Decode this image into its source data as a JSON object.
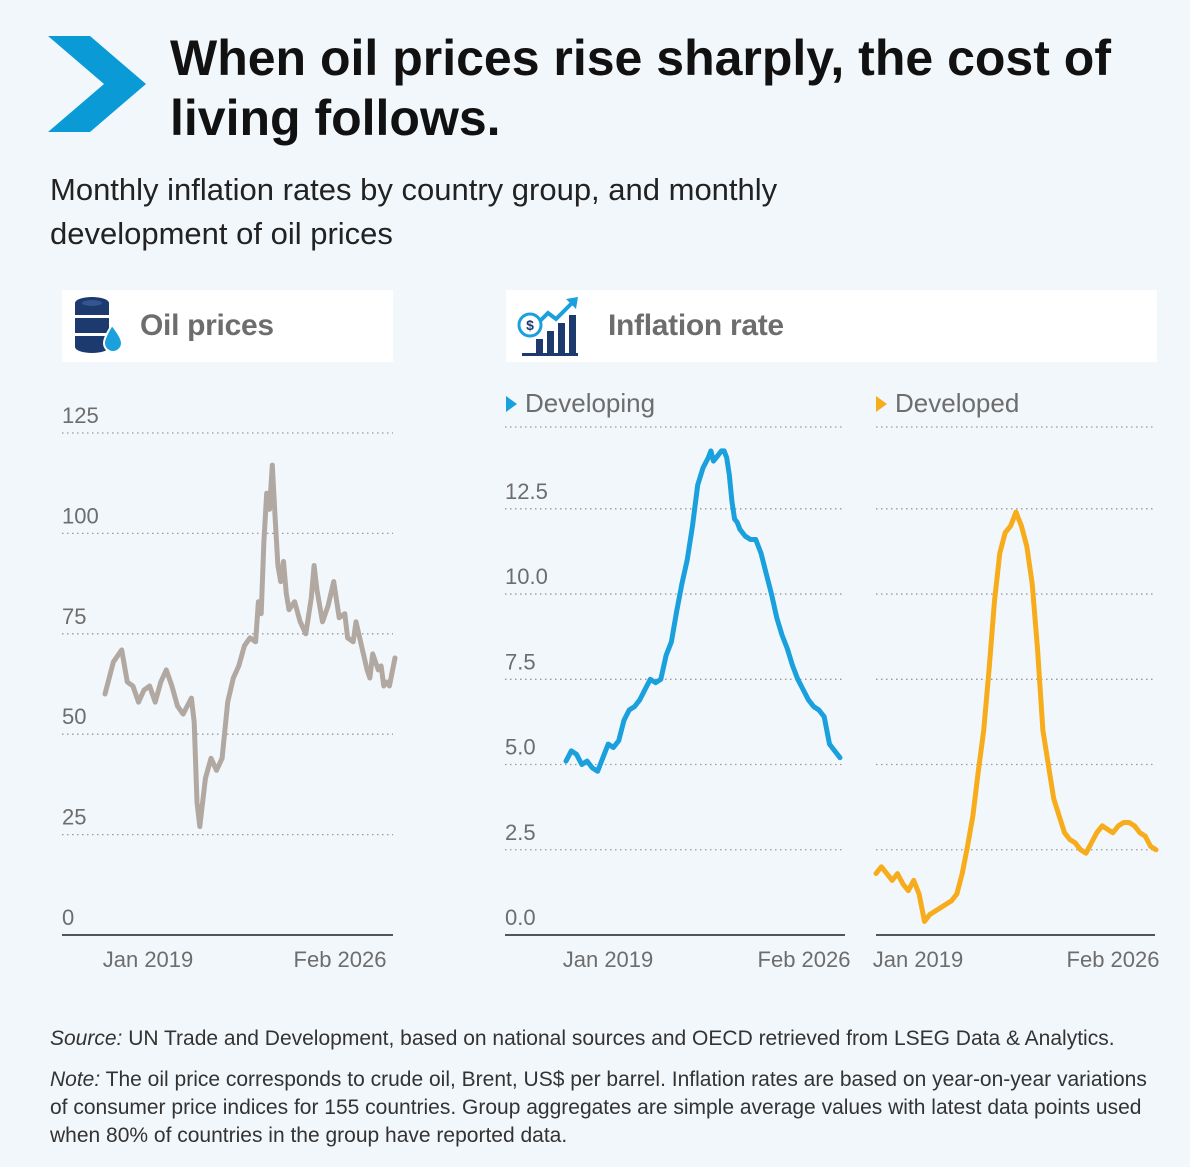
{
  "header": {
    "title": "When oil prices rise sharply, the cost of living follows.",
    "subtitle": "Monthly inflation rates by country group, and monthly development of oil prices"
  },
  "panels": {
    "oil": {
      "title": "Oil prices",
      "icon": "oil-barrel-icon"
    },
    "inflation": {
      "title": "Inflation rate",
      "icon": "finance-growth-icon"
    }
  },
  "colors": {
    "accent": "#0a9bd7",
    "oil": "#b2a8a2",
    "developing": "#1aa0dd",
    "developed": "#f7ac1c",
    "axis": "#6d6d6d"
  },
  "chart_data": [
    {
      "id": "oil",
      "type": "line",
      "title": "Oil prices",
      "unit": "US$ per barrel",
      "ylim": [
        0,
        125
      ],
      "yticks": [
        0,
        25,
        50,
        75,
        100,
        125
      ],
      "ytick_labels": [
        "0",
        "25",
        "50",
        "75",
        "100",
        "125"
      ],
      "xlim": [
        "2017-06",
        "2026-02"
      ],
      "xtick_labels": [
        "Jan 2019",
        "Feb 2026"
      ],
      "grid": true,
      "series": [
        {
          "values": [
            [
              "2017-06",
              60
            ],
            [
              "2017-09",
              68
            ],
            [
              "2017-12",
              71
            ],
            [
              "2018-02",
              63
            ],
            [
              "2018-04",
              62
            ],
            [
              "2018-06",
              58
            ],
            [
              "2018-08",
              61
            ],
            [
              "2018-10",
              62
            ],
            [
              "2018-12",
              58
            ],
            [
              "2019-02",
              63
            ],
            [
              "2019-04",
              66
            ],
            [
              "2019-06",
              62
            ],
            [
              "2019-08",
              57
            ],
            [
              "2019-10",
              55
            ],
            [
              "2020-01",
              59
            ],
            [
              "2020-02",
              53
            ],
            [
              "2020-03",
              33
            ],
            [
              "2020-04",
              27
            ],
            [
              "2020-05",
              33
            ],
            [
              "2020-06",
              39
            ],
            [
              "2020-08",
              44
            ],
            [
              "2020-10",
              41
            ],
            [
              "2020-12",
              44
            ],
            [
              "2021-02",
              58
            ],
            [
              "2021-04",
              64
            ],
            [
              "2021-06",
              67
            ],
            [
              "2021-08",
              72
            ],
            [
              "2021-10",
              74
            ],
            [
              "2021-12",
              73
            ],
            [
              "2022-01",
              83
            ],
            [
              "2022-02",
              80
            ],
            [
              "2022-03",
              98
            ],
            [
              "2022-04",
              110
            ],
            [
              "2022-05",
              106
            ],
            [
              "2022-06",
              117
            ],
            [
              "2022-07",
              104
            ],
            [
              "2022-08",
              92
            ],
            [
              "2022-09",
              88
            ],
            [
              "2022-10",
              93
            ],
            [
              "2022-11",
              85
            ],
            [
              "2022-12",
              81
            ],
            [
              "2023-02",
              83
            ],
            [
              "2023-04",
              78
            ],
            [
              "2023-06",
              75
            ],
            [
              "2023-08",
              84
            ],
            [
              "2023-09",
              92
            ],
            [
              "2023-10",
              86
            ],
            [
              "2023-12",
              78
            ],
            [
              "2024-02",
              82
            ],
            [
              "2024-04",
              88
            ],
            [
              "2024-06",
              79
            ],
            [
              "2024-08",
              80
            ],
            [
              "2024-09",
              74
            ],
            [
              "2024-11",
              73
            ],
            [
              "2024-12",
              78
            ],
            [
              "2025-02",
              72
            ],
            [
              "2025-04",
              66
            ],
            [
              "2025-05",
              64
            ],
            [
              "2025-06",
              70
            ],
            [
              "2025-07",
              68
            ],
            [
              "2025-08",
              66
            ],
            [
              "2025-09",
              67
            ],
            [
              "2025-10",
              62
            ],
            [
              "2025-11",
              63
            ],
            [
              "2025-12",
              62
            ],
            [
              "2026-02",
              69
            ]
          ]
        }
      ]
    },
    {
      "id": "developing",
      "type": "line",
      "title": "Developing",
      "unit": "%",
      "ylim": [
        0,
        14.9
      ],
      "yticks": [
        0,
        2.5,
        5,
        7.5,
        10,
        12.5
      ],
      "ytick_labels": [
        "0.0",
        "2.5",
        "5.0",
        "7.5",
        "10.0",
        "12.5"
      ],
      "xlim": [
        "2017-06",
        "2026-02"
      ],
      "xtick_labels": [
        "Jan 2019",
        "Feb 2026"
      ],
      "grid": true,
      "series": [
        {
          "name": "Developing",
          "values": [
            [
              "2017-06",
              5.1
            ],
            [
              "2017-08",
              5.4
            ],
            [
              "2017-10",
              5.3
            ],
            [
              "2017-12",
              5.0
            ],
            [
              "2018-02",
              5.1
            ],
            [
              "2018-04",
              4.9
            ],
            [
              "2018-06",
              4.8
            ],
            [
              "2018-08",
              5.2
            ],
            [
              "2018-10",
              5.6
            ],
            [
              "2018-12",
              5.5
            ],
            [
              "2019-02",
              5.7
            ],
            [
              "2019-04",
              6.3
            ],
            [
              "2019-06",
              6.6
            ],
            [
              "2019-08",
              6.7
            ],
            [
              "2019-10",
              6.9
            ],
            [
              "2019-12",
              7.2
            ],
            [
              "2020-02",
              7.5
            ],
            [
              "2020-04",
              7.4
            ],
            [
              "2020-06",
              7.5
            ],
            [
              "2020-08",
              8.2
            ],
            [
              "2020-10",
              8.6
            ],
            [
              "2020-12",
              9.5
            ],
            [
              "2021-02",
              10.3
            ],
            [
              "2021-04",
              11.0
            ],
            [
              "2021-06",
              12.0
            ],
            [
              "2021-08",
              13.2
            ],
            [
              "2021-10",
              13.7
            ],
            [
              "2021-12",
              14.0
            ],
            [
              "2022-01",
              14.2
            ],
            [
              "2022-02",
              13.9
            ],
            [
              "2022-03",
              14.0
            ],
            [
              "2022-04",
              14.1
            ],
            [
              "2022-05",
              14.2
            ],
            [
              "2022-06",
              14.2
            ],
            [
              "2022-07",
              14.0
            ],
            [
              "2022-08",
              13.5
            ],
            [
              "2022-09",
              12.7
            ],
            [
              "2022-10",
              12.2
            ],
            [
              "2022-11",
              12.1
            ],
            [
              "2022-12",
              11.9
            ],
            [
              "2023-02",
              11.7
            ],
            [
              "2023-04",
              11.6
            ],
            [
              "2023-06",
              11.6
            ],
            [
              "2023-08",
              11.2
            ],
            [
              "2023-10",
              10.6
            ],
            [
              "2023-12",
              10.0
            ],
            [
              "2024-02",
              9.3
            ],
            [
              "2024-04",
              8.8
            ],
            [
              "2024-06",
              8.4
            ],
            [
              "2024-08",
              7.9
            ],
            [
              "2024-10",
              7.5
            ],
            [
              "2024-12",
              7.2
            ],
            [
              "2025-02",
              6.9
            ],
            [
              "2025-04",
              6.7
            ],
            [
              "2025-06",
              6.6
            ],
            [
              "2025-08",
              6.4
            ],
            [
              "2025-10",
              5.6
            ],
            [
              "2025-12",
              5.4
            ],
            [
              "2026-02",
              5.2
            ]
          ]
        }
      ]
    },
    {
      "id": "developed",
      "type": "line",
      "title": "Developed",
      "unit": "%",
      "ylim": [
        0,
        14.9
      ],
      "yticks": [
        0,
        2.5,
        5,
        7.5,
        10,
        12.5
      ],
      "xlim": [
        "2017-06",
        "2026-02"
      ],
      "xtick_labels": [
        "Jan 2019",
        "Feb 2026"
      ],
      "grid": true,
      "series": [
        {
          "name": "Developed",
          "values": [
            [
              "2017-06",
              1.8
            ],
            [
              "2017-08",
              2.0
            ],
            [
              "2017-10",
              1.8
            ],
            [
              "2017-12",
              1.6
            ],
            [
              "2018-02",
              1.8
            ],
            [
              "2018-04",
              1.5
            ],
            [
              "2018-06",
              1.3
            ],
            [
              "2018-08",
              1.6
            ],
            [
              "2018-10",
              1.2
            ],
            [
              "2018-12",
              0.4
            ],
            [
              "2019-02",
              0.6
            ],
            [
              "2019-04",
              0.7
            ],
            [
              "2019-06",
              0.8
            ],
            [
              "2019-08",
              0.9
            ],
            [
              "2019-10",
              1.0
            ],
            [
              "2019-12",
              1.2
            ],
            [
              "2020-02",
              1.8
            ],
            [
              "2020-04",
              2.6
            ],
            [
              "2020-06",
              3.5
            ],
            [
              "2020-08",
              4.8
            ],
            [
              "2020-10",
              6.0
            ],
            [
              "2020-12",
              7.8
            ],
            [
              "2021-02",
              9.8
            ],
            [
              "2021-04",
              11.2
            ],
            [
              "2021-06",
              11.8
            ],
            [
              "2021-08",
              12.0
            ],
            [
              "2021-10",
              12.4
            ],
            [
              "2021-12",
              12.0
            ],
            [
              "2022-02",
              11.4
            ],
            [
              "2022-04",
              10.3
            ],
            [
              "2022-06",
              8.4
            ],
            [
              "2022-08",
              6.0
            ],
            [
              "2022-10",
              5.0
            ],
            [
              "2022-12",
              4.0
            ],
            [
              "2023-02",
              3.5
            ],
            [
              "2023-04",
              3.0
            ],
            [
              "2023-06",
              2.8
            ],
            [
              "2023-08",
              2.7
            ],
            [
              "2023-10",
              2.5
            ],
            [
              "2023-12",
              2.4
            ],
            [
              "2024-02",
              2.7
            ],
            [
              "2024-04",
              3.0
            ],
            [
              "2024-06",
              3.2
            ],
            [
              "2024-08",
              3.1
            ],
            [
              "2024-10",
              3.0
            ],
            [
              "2024-12",
              3.2
            ],
            [
              "2025-02",
              3.3
            ],
            [
              "2025-04",
              3.3
            ],
            [
              "2025-06",
              3.2
            ],
            [
              "2025-08",
              3.0
            ],
            [
              "2025-10",
              2.9
            ],
            [
              "2025-12",
              2.6
            ],
            [
              "2026-02",
              2.5
            ]
          ]
        }
      ]
    }
  ],
  "footer": {
    "source_label": "Source:",
    "source_text": " UN Trade and Development, based on national sources and OECD retrieved from LSEG Data & Analytics.",
    "note_label": "Note:",
    "note_text": " The oil price corresponds to crude oil, Brent, US$ per barrel. Inflation rates are based on year-on-year variations of consumer price indices for 155 countries. Group aggregates are simple average values with latest data points used when 80% of countries in the group have reported data."
  }
}
